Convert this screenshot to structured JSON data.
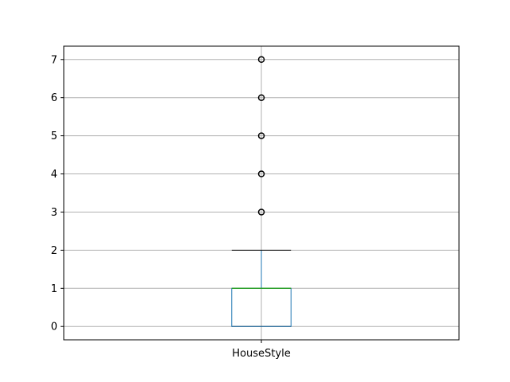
{
  "chart_data": {
    "type": "box",
    "title": "",
    "xlabel": "",
    "ylabel": "",
    "categories": [
      "HouseStyle"
    ],
    "ylim": [
      -0.35,
      7.35
    ],
    "yticks": [
      0,
      1,
      2,
      3,
      4,
      5,
      6,
      7
    ],
    "grid": true,
    "boxes": [
      {
        "category": "HouseStyle",
        "whisker_low": 0,
        "q1": 0,
        "median": 1,
        "q3": 1,
        "whisker_high": 2,
        "outliers": [
          3,
          4,
          5,
          6,
          7
        ]
      }
    ],
    "colors": {
      "box": "#1f77b4",
      "median": "#2ca02c",
      "grid": "#b0b0b0",
      "outlier": "#000000"
    }
  }
}
